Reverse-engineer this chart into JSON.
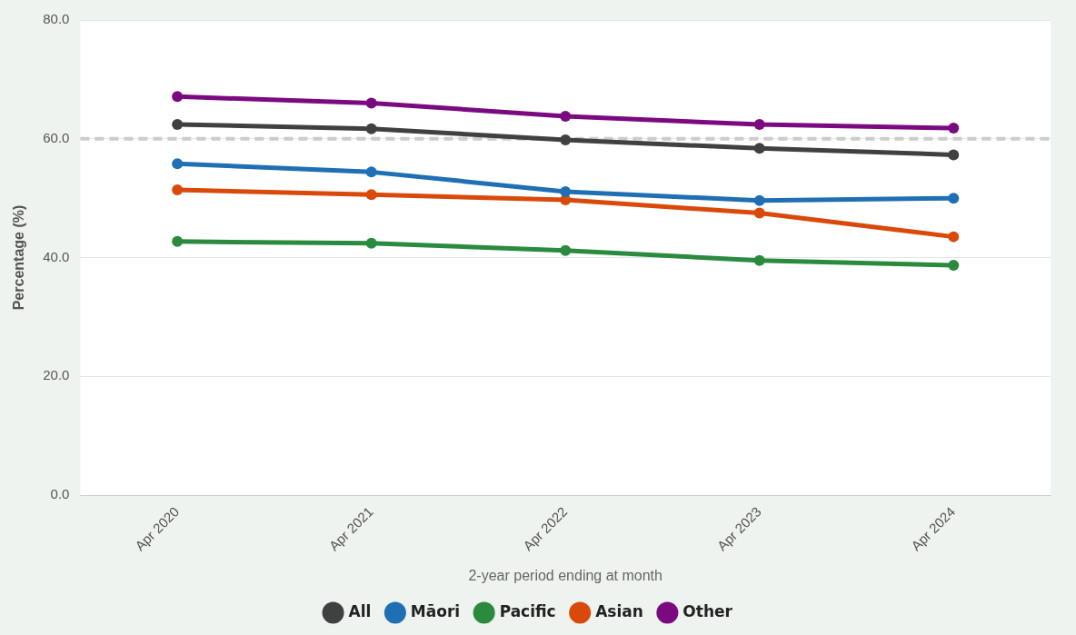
{
  "chart_data": {
    "type": "line",
    "xlabel": "2-year period ending at month",
    "ylabel": "Percentage (%)",
    "categories": [
      "Apr 2020",
      "Apr 2021",
      "Apr 2022",
      "Apr 2023",
      "Apr 2024"
    ],
    "series": [
      {
        "name": "All",
        "color": "#404040",
        "values": [
          62.4,
          61.7,
          59.8,
          58.4,
          57.3
        ]
      },
      {
        "name": "Māori",
        "color": "#1f6fb5",
        "values": [
          55.8,
          54.4,
          51.1,
          49.6,
          50.0
        ]
      },
      {
        "name": "Pacific",
        "color": "#2a8a3e",
        "values": [
          42.7,
          42.4,
          41.2,
          39.5,
          38.7
        ]
      },
      {
        "name": "Asian",
        "color": "#d94a0a",
        "values": [
          51.4,
          50.6,
          49.7,
          47.5,
          43.5
        ]
      },
      {
        "name": "Other",
        "color": "#7b0a80",
        "values": [
          67.1,
          66.0,
          63.8,
          62.4,
          61.8
        ]
      }
    ],
    "ylim": [
      0,
      80
    ],
    "yticks": [
      {
        "value": 0,
        "label": "0.0"
      },
      {
        "value": 20,
        "label": "20.0"
      },
      {
        "value": 40,
        "label": "40.0"
      },
      {
        "value": 60,
        "label": "60.0"
      },
      {
        "value": 80,
        "label": "80.0"
      }
    ],
    "ref_lines": [
      {
        "axis": "y",
        "value": 60,
        "color": "#cccccc",
        "line_style": "dashed"
      }
    ],
    "grid": "y",
    "legend": "bottom",
    "marker": "circle",
    "line_style": "solid"
  }
}
